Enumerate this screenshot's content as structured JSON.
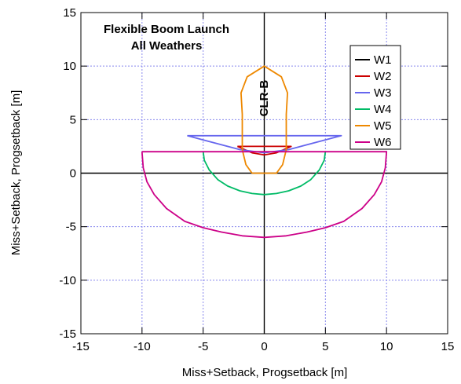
{
  "chart_data": {
    "type": "line",
    "title": [
      "Flexible Boom Launch",
      "All Weathers"
    ],
    "xlabel": "Miss+Setback, Progsetback [m]",
    "ylabel": "Miss+Setback, Progsetback [m]",
    "xlim": [
      -15,
      15
    ],
    "ylim": [
      -15,
      15
    ],
    "xticks": [
      -15,
      -10,
      -5,
      0,
      5,
      10,
      15
    ],
    "yticks": [
      -15,
      -10,
      -5,
      0,
      5,
      10,
      15
    ],
    "grid": true,
    "legend_position": "top-right",
    "annotation": {
      "text": "CLR-B",
      "x": 0,
      "y": 7,
      "rotation": -90
    },
    "zero_lines": true,
    "series": [
      {
        "name": "W1",
        "color": "#000000",
        "points": []
      },
      {
        "name": "W2",
        "color": "#cc0000",
        "points": [
          [
            -2.2,
            2.5
          ],
          [
            2.2,
            2.5
          ],
          [
            1.0,
            1.9
          ],
          [
            0,
            1.7
          ],
          [
            -1.0,
            1.9
          ],
          [
            -2.2,
            2.5
          ]
        ]
      },
      {
        "name": "W3",
        "color": "#6666ee",
        "points": [
          [
            -6.3,
            3.5
          ],
          [
            6.3,
            3.5
          ],
          [
            2.0,
            2.2
          ],
          [
            0,
            1.9
          ],
          [
            -2.0,
            2.2
          ],
          [
            -6.3,
            3.5
          ]
        ]
      },
      {
        "name": "W4",
        "color": "#00bb66",
        "points": [
          [
            -5,
            2
          ],
          [
            -4.9,
            1.2
          ],
          [
            -4.5,
            0.3
          ],
          [
            -3.8,
            -0.6
          ],
          [
            -3.0,
            -1.2
          ],
          [
            -2.0,
            -1.65
          ],
          [
            -1.0,
            -1.9
          ],
          [
            0,
            -2.0
          ],
          [
            1.0,
            -1.9
          ],
          [
            2.0,
            -1.65
          ],
          [
            3.0,
            -1.2
          ],
          [
            3.8,
            -0.6
          ],
          [
            4.5,
            0.3
          ],
          [
            4.9,
            1.2
          ],
          [
            5,
            2
          ]
        ]
      },
      {
        "name": "W5",
        "color": "#ee8800",
        "points": [
          [
            -1.0,
            0
          ],
          [
            -1.5,
            0.8
          ],
          [
            -1.8,
            2.2
          ],
          [
            -1.8,
            5.5
          ],
          [
            -1.9,
            7.5
          ],
          [
            -1.4,
            9.0
          ],
          [
            0,
            10.0
          ],
          [
            1.4,
            9.0
          ],
          [
            1.9,
            7.5
          ],
          [
            1.8,
            5.5
          ],
          [
            1.8,
            2.2
          ],
          [
            1.5,
            0.8
          ],
          [
            1.0,
            0
          ],
          [
            -1.0,
            0
          ]
        ]
      },
      {
        "name": "W6",
        "color": "#cc0088",
        "points": [
          [
            -10,
            2
          ],
          [
            10,
            2
          ],
          [
            9.9,
            0.5
          ],
          [
            9.6,
            -0.8
          ],
          [
            9.0,
            -2.0
          ],
          [
            8.0,
            -3.3
          ],
          [
            6.5,
            -4.5
          ],
          [
            5.0,
            -5.1
          ],
          [
            3.5,
            -5.5
          ],
          [
            1.8,
            -5.85
          ],
          [
            0,
            -6.0
          ],
          [
            -1.8,
            -5.85
          ],
          [
            -3.5,
            -5.5
          ],
          [
            -5.0,
            -5.1
          ],
          [
            -6.5,
            -4.5
          ],
          [
            -8.0,
            -3.3
          ],
          [
            -9.0,
            -2.0
          ],
          [
            -9.6,
            -0.8
          ],
          [
            -9.9,
            0.5
          ],
          [
            -10,
            2
          ]
        ]
      }
    ]
  }
}
